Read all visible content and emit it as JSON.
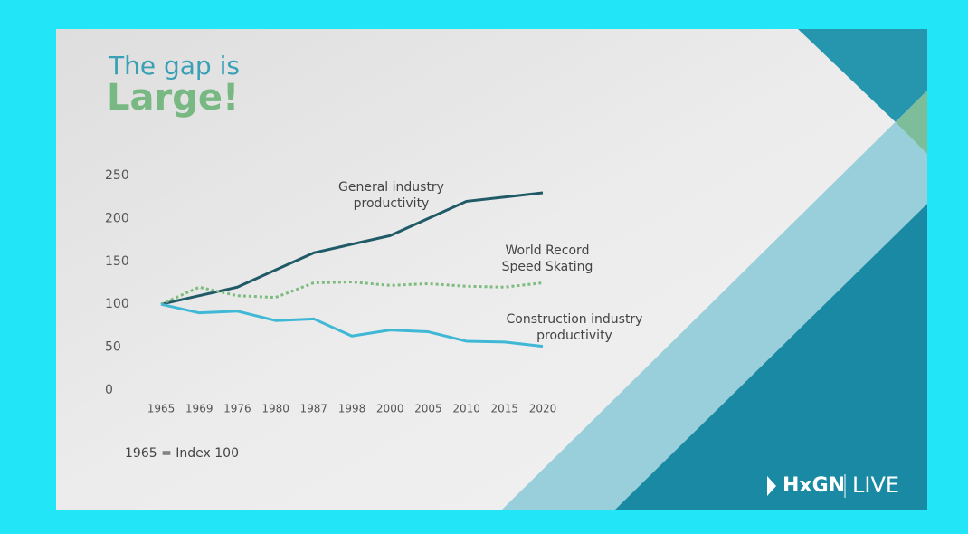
{
  "slide": {
    "title_line1": "The gap is",
    "title_line2": "Large!",
    "footnote": "1965 = Index 100",
    "logo_brand": "HxGN",
    "logo_event": "LIVE"
  },
  "chart_data": {
    "type": "line",
    "categories": [
      "1965",
      "1969",
      "1976",
      "1980",
      "1987",
      "1998",
      "2000",
      "2005",
      "2010",
      "2015",
      "2020"
    ],
    "series": [
      {
        "name": "General industry productivity",
        "color": "#1f5a66",
        "dash": false,
        "values": [
          100,
          110,
          120,
          140,
          160,
          170,
          180,
          200,
          220,
          225,
          230
        ]
      },
      {
        "name": "World Record Speed Skating",
        "color": "#7dbb7e",
        "dash": true,
        "values": [
          100,
          120,
          110,
          108,
          125,
          126,
          122,
          124,
          121,
          120,
          125
        ]
      },
      {
        "name": "Construction industry productivity",
        "color": "#3fb8d6",
        "dash": false,
        "values": [
          100,
          90,
          92,
          81,
          83,
          63,
          70,
          68,
          57,
          56,
          51
        ]
      }
    ],
    "ylim": [
      0,
      250
    ],
    "yticks": [
      0,
      50,
      100,
      150,
      200,
      250
    ],
    "grid": false
  }
}
